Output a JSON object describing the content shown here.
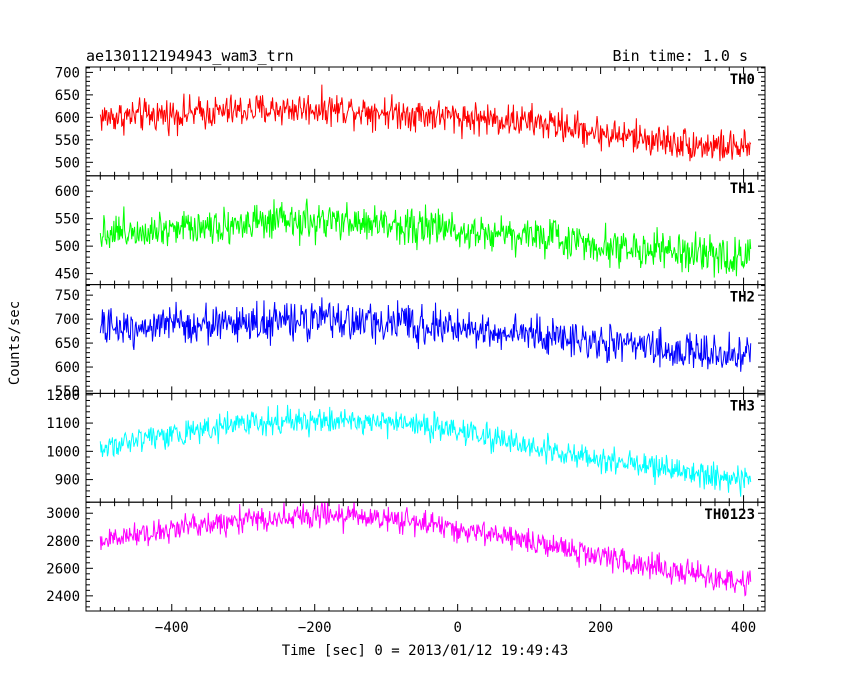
{
  "header": {
    "title": "ae130112194943_wam3_trn",
    "bin_time": "Bin time: 1.0 s"
  },
  "chart_data": {
    "type": "line",
    "xlabel": "Time [sec] 0 = 2013/01/12 19:49:43",
    "ylabel": "Counts/sec",
    "xlim": [
      -520,
      430
    ],
    "x_ticks": [
      -400,
      -200,
      0,
      200,
      400
    ],
    "panels": [
      {
        "name": "TH0",
        "color": "#ff0000",
        "ylim": [
          470,
          712
        ],
        "y_ticks": [
          500,
          550,
          600,
          650,
          700
        ],
        "x": [
          -500,
          -450,
          -400,
          -350,
          -300,
          -250,
          -200,
          -150,
          -100,
          -50,
          0,
          50,
          100,
          150,
          200,
          250,
          300,
          350,
          410
        ],
        "mean": [
          600,
          603,
          607,
          610,
          615,
          618,
          620,
          618,
          612,
          607,
          600,
          596,
          590,
          580,
          565,
          555,
          545,
          537,
          530
        ],
        "noise": 28
      },
      {
        "name": "TH1",
        "color": "#00ff00",
        "ylim": [
          430,
          628
        ],
        "y_ticks": [
          450,
          500,
          550,
          600
        ],
        "x": [
          -500,
          -450,
          -400,
          -350,
          -300,
          -250,
          -200,
          -150,
          -100,
          -50,
          0,
          50,
          100,
          150,
          200,
          250,
          300,
          350,
          410
        ],
        "mean": [
          525,
          530,
          535,
          538,
          540,
          542,
          543,
          542,
          540,
          536,
          530,
          525,
          520,
          512,
          503,
          495,
          488,
          482,
          478
        ],
        "noise": 26
      },
      {
        "name": "TH2",
        "color": "#0000ff",
        "ylim": [
          545,
          772
        ],
        "y_ticks": [
          550,
          600,
          650,
          700,
          750
        ],
        "x": [
          -500,
          -450,
          -400,
          -350,
          -300,
          -250,
          -200,
          -150,
          -100,
          -50,
          0,
          50,
          100,
          150,
          200,
          250,
          300,
          350,
          410
        ],
        "mean": [
          680,
          685,
          688,
          690,
          692,
          694,
          697,
          695,
          692,
          688,
          682,
          675,
          668,
          660,
          652,
          643,
          635,
          628,
          622
        ],
        "noise": 30
      },
      {
        "name": "TH3",
        "color": "#00ffff",
        "ylim": [
          820,
          1205
        ],
        "y_ticks": [
          900,
          1000,
          1100,
          1200
        ],
        "x": [
          -500,
          -450,
          -400,
          -350,
          -300,
          -250,
          -200,
          -150,
          -100,
          -50,
          0,
          50,
          100,
          150,
          200,
          250,
          300,
          350,
          410
        ],
        "mean": [
          1010,
          1040,
          1065,
          1080,
          1095,
          1105,
          1110,
          1108,
          1100,
          1090,
          1075,
          1045,
          1015,
          995,
          975,
          955,
          935,
          910,
          895
        ],
        "noise": 35
      },
      {
        "name": "TH0123",
        "color": "#ff00ff",
        "ylim": [
          2290,
          3080
        ],
        "y_ticks": [
          2400,
          2600,
          2800,
          3000
        ],
        "x": [
          -500,
          -450,
          -400,
          -350,
          -300,
          -250,
          -200,
          -150,
          -100,
          -50,
          0,
          50,
          100,
          150,
          200,
          250,
          300,
          350,
          410
        ],
        "mean": [
          2800,
          2840,
          2880,
          2920,
          2950,
          2970,
          2985,
          2980,
          2960,
          2935,
          2880,
          2840,
          2790,
          2740,
          2690,
          2630,
          2580,
          2530,
          2490
        ],
        "noise": 70
      }
    ]
  }
}
